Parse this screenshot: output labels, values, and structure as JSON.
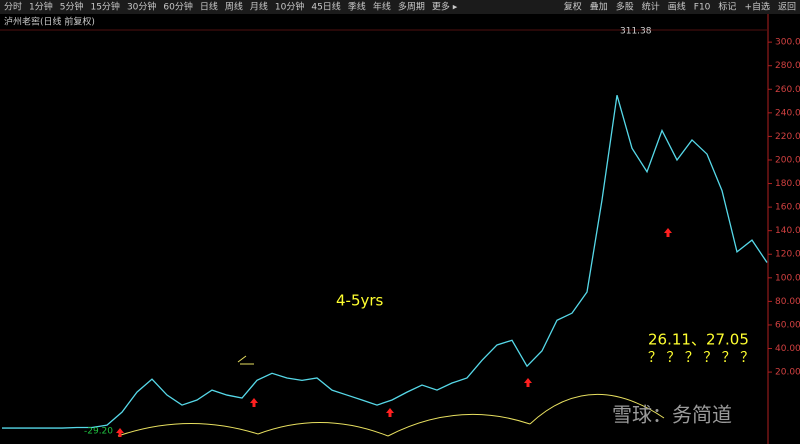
{
  "toolbar": {
    "left": [
      "分时",
      "1分钟",
      "5分钟",
      "15分钟",
      "30分钟",
      "60分钟",
      "日线",
      "周线",
      "月线",
      "10分钟",
      "45日线",
      "季线",
      "年线",
      "多周期",
      "更多 ▸"
    ],
    "right": [
      "复权",
      "叠加",
      "多股",
      "统计",
      "画线",
      "F10",
      "标记",
      "+自选",
      "返回"
    ]
  },
  "chart_data": {
    "type": "line",
    "title": "泸州老窖(日线 前复权)",
    "categories": [
      null,
      null,
      null,
      null,
      null,
      null,
      null,
      null,
      null,
      null,
      null,
      null,
      null,
      null,
      null,
      null,
      null,
      null,
      null,
      null,
      null,
      null,
      null,
      null,
      null,
      null,
      null,
      null,
      null,
      null,
      null,
      null,
      null,
      null,
      null,
      null,
      null,
      null,
      null,
      null,
      null,
      null,
      null,
      null,
      null,
      null,
      null,
      null,
      null,
      null,
      null,
      null
    ],
    "series": [
      {
        "name": "泸州老窖",
        "color": "#56d8e8",
        "values": [
          -27.5,
          -27.5,
          -27.5,
          -27.5,
          -27.5,
          -27,
          -27,
          -25,
          -14,
          3,
          14,
          0.5,
          -8,
          -3.7,
          4.7,
          0.5,
          -2,
          13,
          19,
          15,
          13,
          15,
          4.7,
          0.5,
          -3.7,
          -8,
          -3.7,
          3,
          9,
          4.7,
          10.7,
          15,
          30,
          43,
          47,
          25,
          38,
          64,
          70,
          88,
          166,
          255,
          210,
          190,
          225,
          200,
          217,
          205,
          174,
          122,
          132,
          113
        ]
      }
    ],
    "ylim": [
      -30,
      312
    ],
    "yticks": [
      {
        "value": 20,
        "label": "20.00"
      },
      {
        "value": 40,
        "label": "40.00"
      },
      {
        "value": 60,
        "label": "60.00"
      },
      {
        "value": 80,
        "label": "80.00"
      },
      {
        "value": 100,
        "label": "100.00"
      },
      {
        "value": 120,
        "label": "120.00"
      },
      {
        "value": 140,
        "label": "140.00"
      },
      {
        "value": 160,
        "label": "160.00"
      },
      {
        "value": 180,
        "label": "180.00"
      },
      {
        "value": 200,
        "label": "200.00"
      },
      {
        "value": 220,
        "label": "220.00"
      },
      {
        "value": 240,
        "label": "240.00"
      },
      {
        "value": 260,
        "label": "260.00"
      },
      {
        "value": 280,
        "label": "280.00"
      },
      {
        "value": 300,
        "label": "300.00"
      }
    ],
    "grid": false,
    "annotations": [
      "311.38",
      "-29.20",
      "4-5yrs",
      "26.11、27.05",
      "？ ？ ？ ？ ？ ？",
      "雪球：务简道"
    ]
  }
}
